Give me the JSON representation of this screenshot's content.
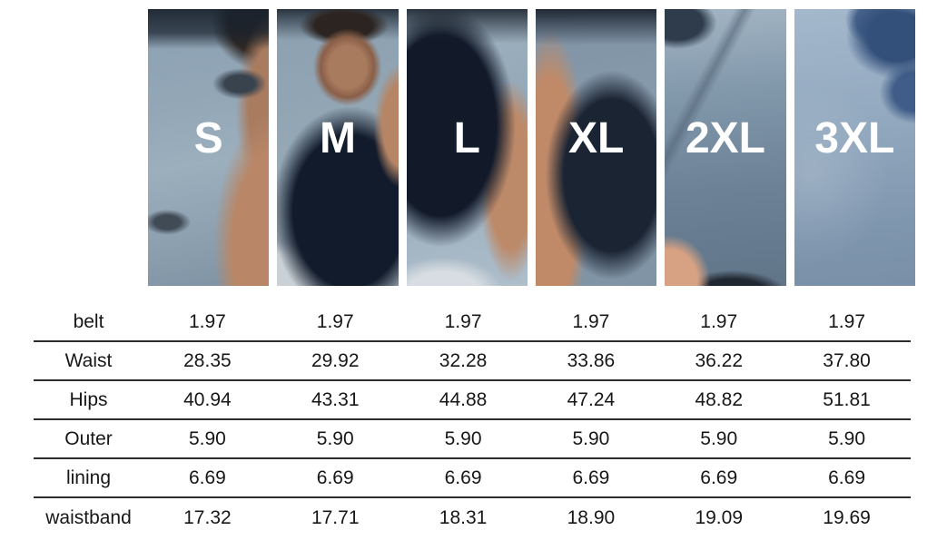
{
  "chart_data": {
    "type": "table",
    "title": "",
    "categories": [
      "S",
      "M",
      "L",
      "XL",
      "2XL",
      "3XL"
    ],
    "series": [
      {
        "name": "belt",
        "values": [
          "1.97",
          "1.97",
          "1.97",
          "1.97",
          "1.97",
          "1.97"
        ]
      },
      {
        "name": "Waist",
        "values": [
          "28.35",
          "29.92",
          "32.28",
          "33.86",
          "36.22",
          "37.80"
        ]
      },
      {
        "name": "Hips",
        "values": [
          "40.94",
          "43.31",
          "44.88",
          "47.24",
          "48.82",
          "51.81"
        ]
      },
      {
        "name": "Outer",
        "values": [
          "5.90",
          "5.90",
          "5.90",
          "5.90",
          "5.90",
          "5.90"
        ]
      },
      {
        "name": "lining",
        "values": [
          "6.69",
          "6.69",
          "6.69",
          "6.69",
          "6.69",
          "6.69"
        ]
      },
      {
        "name": "waistband",
        "values": [
          "17.32",
          "17.71",
          "18.31",
          "18.90",
          "19.09",
          "19.69"
        ]
      }
    ],
    "layout": "six photo panels labeled with sizes above a 6-row measurement grid, horizontal rule between rows"
  },
  "colors": {
    "size_label": "#ffffff",
    "table_text": "#171717",
    "row_divider": "#2d2d2d",
    "background": "#ffffff",
    "photo_wall_blue": "#8ba0b2",
    "photo_dark_navy": "#121b2b"
  }
}
